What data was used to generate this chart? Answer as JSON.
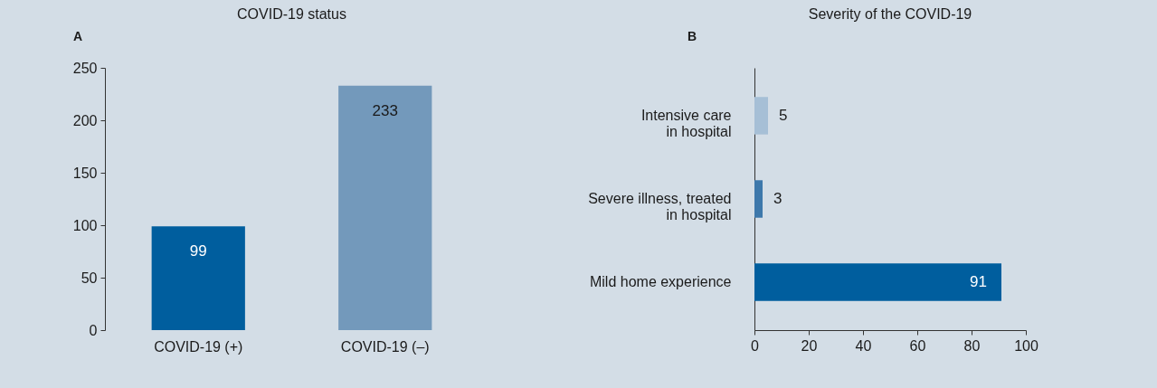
{
  "chart_data": [
    {
      "type": "bar",
      "title": "COVID-19 status",
      "annotations": [
        "A"
      ],
      "categories": [
        "COVID-19 (+)",
        "COVID-19 (–)"
      ],
      "values": [
        99,
        233
      ],
      "colors": [
        "#005e9e",
        "#7399bb"
      ],
      "ylim": [
        0,
        250
      ],
      "yticks": [
        0,
        50,
        100,
        150,
        200,
        250
      ],
      "data_labels": true,
      "grid": false,
      "legend": false
    },
    {
      "type": "bar",
      "orientation": "horizontal",
      "title": "Severity of the COVID-19",
      "annotations": [
        "B"
      ],
      "categories": [
        "Intensive care in hospital",
        "Severe illness, treated in hospital",
        "Mild home experience"
      ],
      "values": [
        5,
        3,
        91
      ],
      "colors": [
        "#a6bfd6",
        "#3d78ab",
        "#005e9e"
      ],
      "xlim": [
        0,
        100
      ],
      "xticks": [
        0,
        20,
        40,
        60,
        80,
        100
      ],
      "data_labels": true,
      "grid": false,
      "legend": false
    }
  ]
}
